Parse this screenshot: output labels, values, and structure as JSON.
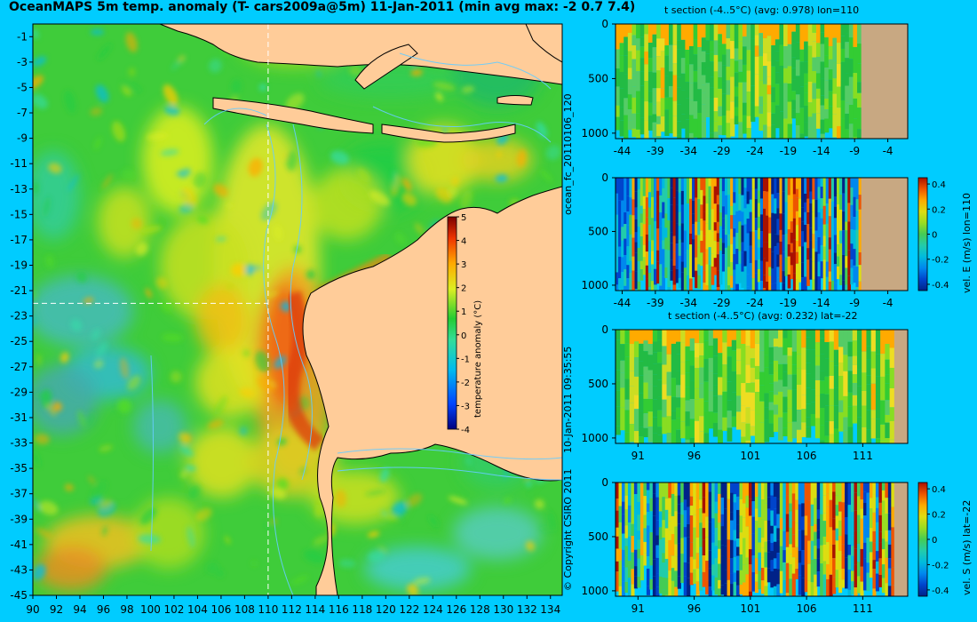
{
  "title": "OceanMAPS 5m temp. anomaly (T- cars2009a@5m) 11-Jan-2011 (min avg max: -2 0.7 7.4)",
  "side_label_run": "ocean_fc_20110106_120",
  "side_label_time": "10-Jan-2011 09:35:55",
  "copyright": "© Copyright CSIRO 2011",
  "colors": {
    "background": "#00ccff",
    "land": "#ffcc99",
    "section_land": "#c8a882",
    "section_line": "#ffffff",
    "contour": "#66ccff"
  },
  "chart_data": [
    {
      "id": "map",
      "type": "heatmap",
      "title": "OceanMAPS 5m temp. anomaly (T- cars2009a@5m) 11-Jan-2011 (min avg max: -2 0.7 7.4)",
      "x_ticks": [
        90,
        92,
        94,
        96,
        98,
        100,
        102,
        104,
        106,
        108,
        110,
        112,
        114,
        116,
        118,
        120,
        122,
        124,
        126,
        128,
        130,
        132,
        134
      ],
      "y_ticks": [
        -1,
        -3,
        -5,
        -7,
        -9,
        -11,
        -13,
        -15,
        -17,
        -19,
        -21,
        -23,
        -25,
        -27,
        -29,
        -31,
        -33,
        -35,
        -37,
        -39,
        -41,
        -43,
        -45
      ],
      "xlim": [
        90,
        135
      ],
      "ylim": [
        -45,
        0
      ],
      "section_lines": {
        "lon": 110,
        "lat": -22
      },
      "colorbar": {
        "label": "temperature anomaly (°C)",
        "ticks": [
          5,
          4,
          3,
          2,
          1,
          0,
          -1,
          -2,
          -3,
          -4
        ],
        "range": [
          -4,
          5
        ]
      },
      "summary": {
        "min": -2,
        "avg": 0.7,
        "max": 7.4
      }
    },
    {
      "id": "tsec-lon",
      "type": "heatmap",
      "title": "t section (-4..5°C) (avg: 0.978) lon=110",
      "x_ticks": [
        -44,
        -39,
        -34,
        -29,
        -24,
        -19,
        -14,
        -9,
        -4
      ],
      "y_ticks": [
        0,
        500,
        1000
      ],
      "xlim": [
        -45,
        -1
      ],
      "ylim": [
        1050,
        0
      ],
      "land_from_x": -8
    },
    {
      "id": "vel-e",
      "type": "heatmap",
      "x_ticks": [
        -44,
        -39,
        -34,
        -29,
        -24,
        -19,
        -14,
        -9,
        -4
      ],
      "y_ticks": [
        0,
        500,
        1000
      ],
      "xlim": [
        -45,
        -1
      ],
      "ylim": [
        1050,
        0
      ],
      "land_from_x": -8,
      "colorbar": {
        "label": "vel. E (m/s) lon=110",
        "ticks": [
          0.4,
          0.2,
          0,
          -0.2,
          -0.4
        ],
        "range": [
          -0.45,
          0.45
        ]
      }
    },
    {
      "id": "tsec-lat",
      "type": "heatmap",
      "title": "t section (-4..5°C) (avg: 0.232) lat=-22",
      "x_ticks": [
        91,
        96,
        101,
        106,
        111
      ],
      "y_ticks": [
        0,
        500,
        1000
      ],
      "xlim": [
        89,
        115
      ],
      "ylim": [
        1050,
        0
      ],
      "land_from_x": 113.8
    },
    {
      "id": "vel-s",
      "type": "heatmap",
      "x_ticks": [
        91,
        96,
        101,
        106,
        111
      ],
      "y_ticks": [
        0,
        500,
        1000
      ],
      "xlim": [
        89,
        115
      ],
      "ylim": [
        1050,
        0
      ],
      "land_from_x": 113.8,
      "colorbar": {
        "label": "vel. S (m/s) lat=-22",
        "ticks": [
          0.4,
          0.2,
          0,
          -0.2,
          -0.4
        ],
        "range": [
          -0.45,
          0.45
        ]
      }
    }
  ]
}
